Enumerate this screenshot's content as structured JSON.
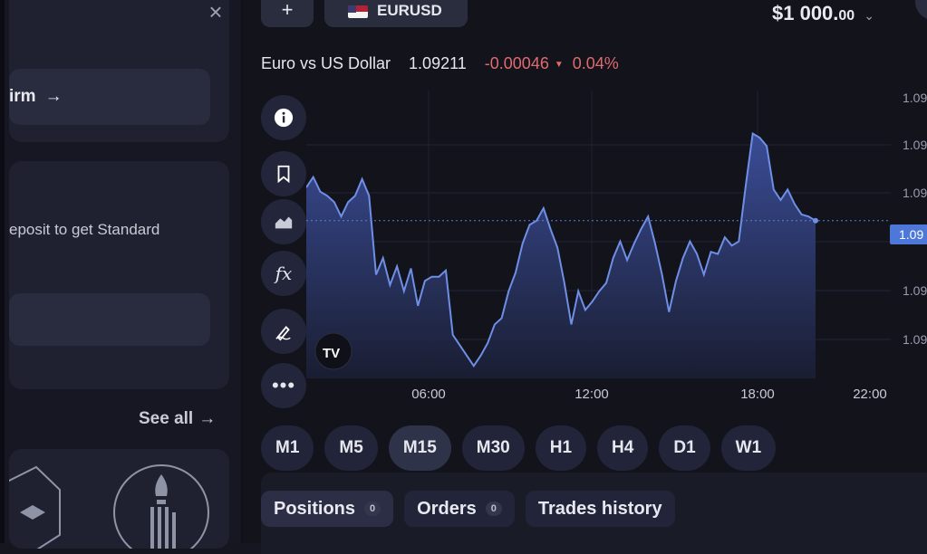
{
  "left_panel": {
    "close_glyph": "×",
    "card_top_cut_text": "— —",
    "confirm_label": "irm",
    "arrow": "→",
    "deposit_text": "eposit to get Standard",
    "see_all": "See all"
  },
  "header": {
    "add_glyph": "+",
    "pair_label": "EURUSD",
    "balance_main": "$1 000.",
    "balance_cents": "00",
    "chevron": "⌄"
  },
  "quote": {
    "name": "Euro vs US Dollar",
    "price": "1.09211",
    "change": "-0.00046",
    "change_dir": "▼",
    "percent": "0.04%"
  },
  "toolbar": {
    "items": [
      "info-icon",
      "bookmark-icon",
      "area-chart-icon",
      "indicators-icon",
      "draw-icon",
      "more-icon"
    ],
    "fx_label": "fx",
    "more_label": "•••"
  },
  "chart_data": {
    "type": "area",
    "x_labels": [
      "06:00",
      "12:00",
      "18:00",
      "22:00"
    ],
    "y_tick_label": "1.09",
    "current_price_label": "1.09",
    "watermark": "TV",
    "series": [
      {
        "values": [
          0.62,
          0.67,
          0.6,
          0.58,
          0.55,
          0.48,
          0.55,
          0.58,
          0.66,
          0.58,
          0.2,
          0.28,
          0.15,
          0.24,
          0.12,
          0.23,
          0.05,
          0.17,
          0.19,
          0.19,
          0.22,
          -0.09,
          -0.14,
          -0.19,
          -0.24,
          -0.19,
          -0.13,
          -0.04,
          -0.01,
          0.12,
          0.21,
          0.35,
          0.44,
          0.46,
          0.52,
          0.42,
          0.33,
          0.16,
          -0.04,
          0.12,
          0.03,
          0.07,
          0.12,
          0.16,
          0.28,
          0.36,
          0.27,
          0.35,
          0.42,
          0.48,
          0.35,
          0.2,
          0.02,
          0.17,
          0.28,
          0.36,
          0.3,
          0.2,
          0.31,
          0.3,
          0.38,
          0.34,
          0.36,
          0.63,
          0.88,
          0.86,
          0.82,
          0.61,
          0.56,
          0.61,
          0.54,
          0.49,
          0.48,
          0.46
        ]
      }
    ],
    "colors": {
      "line": "#6f8fe6",
      "fill_top": "#3c4f9c",
      "fill_bottom": "#1a1e33",
      "price_tag": "#4d77d8"
    }
  },
  "timeframes": {
    "items": [
      "M1",
      "M5",
      "M15",
      "M30",
      "H1",
      "H4",
      "D1",
      "W1"
    ],
    "active": "M15"
  },
  "bottom_tabs": {
    "positions": {
      "label": "Positions",
      "count": "0"
    },
    "orders": {
      "label": "Orders",
      "count": "0"
    },
    "history": {
      "label": "Trades history"
    }
  }
}
